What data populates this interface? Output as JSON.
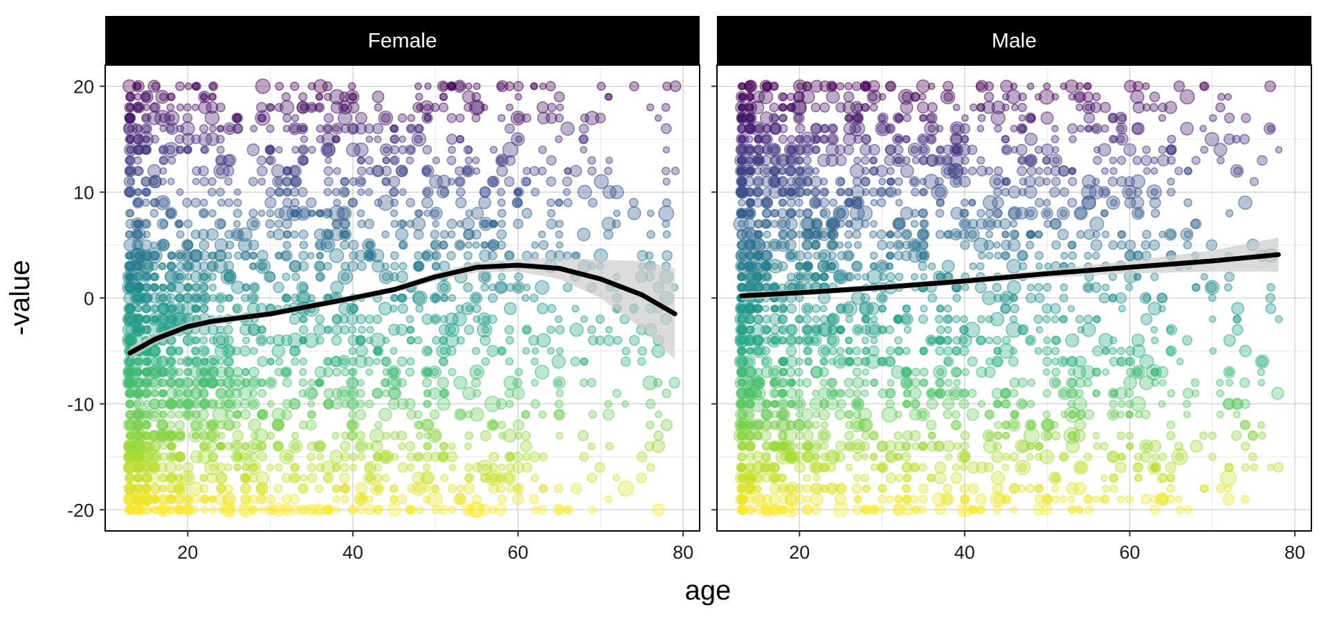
{
  "chart_data": {
    "type": "scatter",
    "xlabel": "age",
    "ylabel": "-value",
    "xlim": [
      10,
      82
    ],
    "ylim": [
      -22,
      22
    ],
    "x_ticks": [
      20,
      40,
      60,
      80
    ],
    "y_ticks": [
      -20,
      -10,
      0,
      10,
      20
    ],
    "x_tick_labels": [
      "20",
      "40",
      "60",
      "80"
    ],
    "y_tick_labels": [
      "-20",
      "-10",
      "0",
      "10",
      "20"
    ],
    "grid": true,
    "color_scale": "viridis, mapped to -value (20 = purple, -20 = yellow)",
    "point_alpha": 0.35,
    "colors": {
      "strip_background": "#000000",
      "strip_text": "#ffffff",
      "trend_line": "#000000",
      "confidence_band": "#cccccc",
      "grid": "#d9d9d9"
    },
    "panels": [
      {
        "label": "Female",
        "x_range": [
          13,
          79
        ],
        "smooth_fit": {
          "method": "loess",
          "x": [
            13,
            16,
            20,
            23,
            30,
            40,
            45,
            50,
            55,
            60,
            65,
            70,
            75,
            79
          ],
          "y": [
            -5.2,
            -3.9,
            -2.7,
            -2.2,
            -1.5,
            0,
            0.8,
            2.0,
            2.9,
            3.1,
            2.8,
            1.8,
            0.3,
            -1.5
          ],
          "ci_half_width": [
            0.6,
            0.5,
            0.4,
            0.4,
            0.3,
            0.3,
            0.3,
            0.4,
            0.5,
            0.6,
            1.0,
            1.8,
            3.2,
            4.3
          ]
        }
      },
      {
        "label": "Male",
        "x_range": [
          13,
          78
        ],
        "smooth_fit": {
          "method": "loess",
          "x": [
            13,
            20,
            30,
            40,
            50,
            60,
            70,
            78
          ],
          "y": [
            0.2,
            0.5,
            1.0,
            1.6,
            2.3,
            2.9,
            3.5,
            4.1
          ],
          "ci_half_width": [
            0.4,
            0.3,
            0.3,
            0.3,
            0.4,
            0.6,
            1.0,
            1.6
          ]
        }
      }
    ]
  }
}
